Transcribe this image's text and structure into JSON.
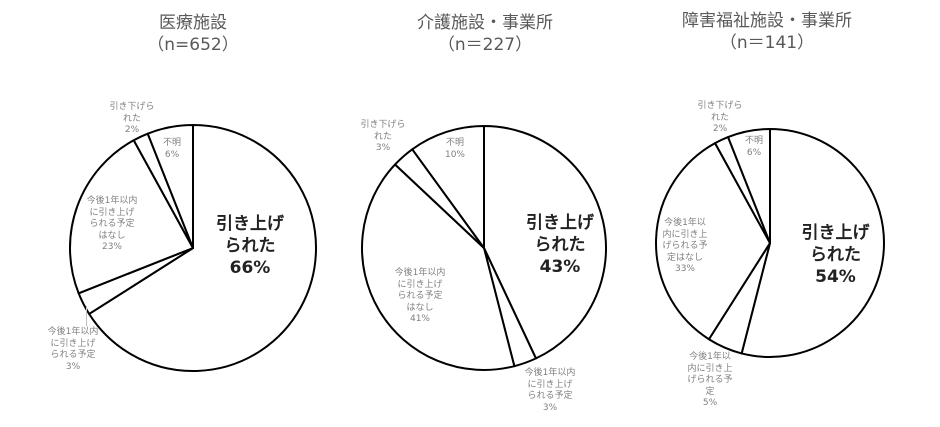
{
  "chart_data": [
    {
      "type": "pie",
      "title": "医療施設",
      "subtitle": "（n=652）",
      "categories": [
        "引き上げられた",
        "今後1年以内に引き上げられる予定",
        "今後1年以内に引き上げられる予定はなし",
        "引き下げられた",
        "不明"
      ],
      "values": [
        66,
        3,
        23,
        2,
        6
      ],
      "unit": "%",
      "start_angle": "12 o'clock, clockwise",
      "labels": {
        "main": "引き上げ\nられた\n66%",
        "planned": "今後1年以内\nに引き上げ\nられる予定\n3%",
        "not_planned": "今後1年以内\nに引き上げ\nられる予定\nはなし\n23%",
        "lowered": "引き下げら\nれた\n2%",
        "unknown": "不明\n6%"
      }
    },
    {
      "type": "pie",
      "title": "介護施設・事業所",
      "subtitle": "（n＝227）",
      "categories": [
        "引き上げられた",
        "今後1年以内に引き上げられる予定",
        "今後1年以内に引き上げられる予定はなし",
        "引き下げられた",
        "不明"
      ],
      "values": [
        43,
        3,
        41,
        3,
        10
      ],
      "unit": "%",
      "start_angle": "12 o'clock, clockwise",
      "labels": {
        "main": "引き上げ\nられた\n43%",
        "planned": "今後1年以内\nに引き上げ\nられる予定\n3%",
        "not_planned": "今後1年以内\nに引き上げ\nられる予定\nはなし\n41%",
        "lowered": "引き下げら\nれた\n3%",
        "unknown": "不明\n10%"
      }
    },
    {
      "type": "pie",
      "title": "障害福祉施設・事業所",
      "subtitle": "（n＝141）",
      "categories": [
        "引き上げられた",
        "今後1年以内に引き上げられる予定",
        "今後1年以内に引き上げられる予定はなし",
        "引き下げられた",
        "不明"
      ],
      "values": [
        54,
        5,
        33,
        2,
        6
      ],
      "unit": "%",
      "start_angle": "12 o'clock, clockwise",
      "labels": {
        "main": "引き上げ\nられた\n54%",
        "planned": "今後1年以\n内に引き上\nげられる予\n定\n5%",
        "not_planned": "今後1年以\n内に引き上\nげられる予\n定はなし\n33%",
        "lowered": "引き下げら\nれた\n2%",
        "unknown": "不明\n6%"
      }
    }
  ],
  "style": {
    "stroke_color": "#000000",
    "fill_color": "#ffffff",
    "title_color": "#595959",
    "label_color": "#7f7f7f",
    "main_label_color": "#222222"
  }
}
